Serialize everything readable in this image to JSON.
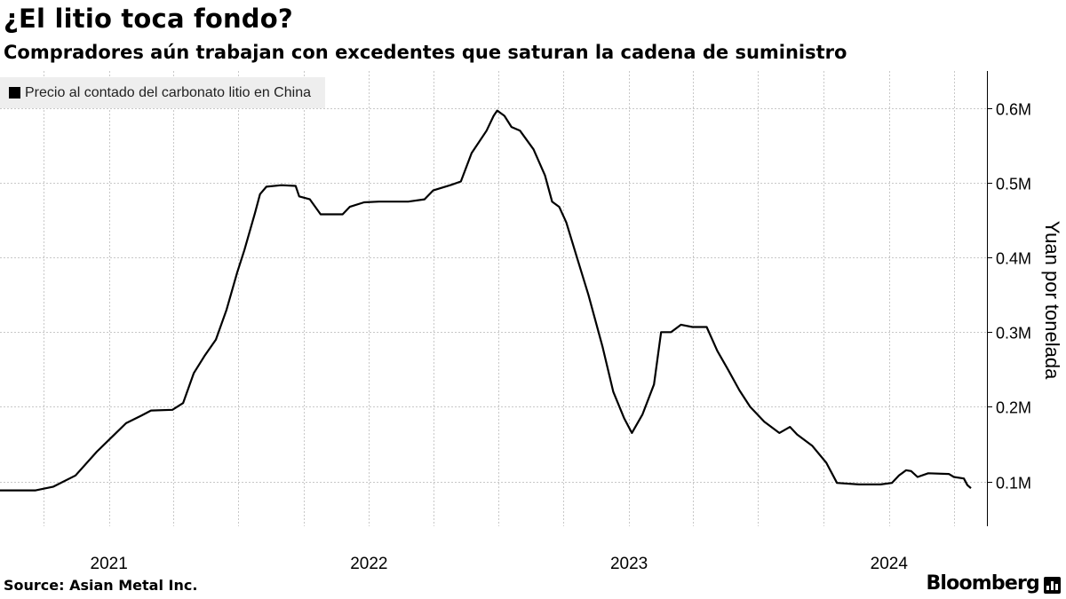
{
  "header": {
    "title": "¿El litio toca fondo?",
    "subtitle": "Compradores aún trabajan con excedentes que saturan la cadena de suministro"
  },
  "legend": {
    "label": "Precio al contado del carbonato litio en China",
    "color": "#000000"
  },
  "footer": {
    "source": "Source: Asian Metal Inc.",
    "brand": "Bloomberg",
    "brand_icon": "bloomberg-bars-icon"
  },
  "chart_data": {
    "type": "line",
    "ylabel": "Yuan por tonelada",
    "ylim": [
      40000,
      650000
    ],
    "yticks": [
      100000,
      200000,
      300000,
      400000,
      500000,
      600000
    ],
    "ytick_labels": [
      "0.1M",
      "0.2M",
      "0.3M",
      "0.4M",
      "0.5M",
      "0.6M"
    ],
    "xlim": [
      "2020-08-01",
      "2024-04-25"
    ],
    "x_tick_labels": [
      {
        "label": "2021",
        "date": "2021-01-01"
      },
      {
        "label": "2022",
        "date": "2022-01-01"
      },
      {
        "label": "2023",
        "date": "2023-01-01"
      },
      {
        "label": "2024",
        "date": "2024-01-01"
      }
    ],
    "grid": true,
    "legend_position": "top-left",
    "axis_side": "right",
    "series": [
      {
        "name": "Precio al contado del carbonato litio en China",
        "color": "#000000",
        "points": [
          [
            "2020-08-01",
            88000
          ],
          [
            "2020-09-20",
            88000
          ],
          [
            "2020-10-15",
            93000
          ],
          [
            "2020-11-15",
            108000
          ],
          [
            "2020-12-15",
            140000
          ],
          [
            "2021-01-25",
            178000
          ],
          [
            "2021-02-15",
            188000
          ],
          [
            "2021-03-01",
            195000
          ],
          [
            "2021-03-31",
            196000
          ],
          [
            "2021-04-15",
            205000
          ],
          [
            "2021-04-30",
            245000
          ],
          [
            "2021-05-15",
            268000
          ],
          [
            "2021-05-31",
            290000
          ],
          [
            "2021-06-15",
            330000
          ],
          [
            "2021-06-30",
            380000
          ],
          [
            "2021-07-10",
            410000
          ],
          [
            "2021-07-25",
            460000
          ],
          [
            "2021-08-01",
            485000
          ],
          [
            "2021-08-10",
            495000
          ],
          [
            "2021-08-31",
            497000
          ],
          [
            "2021-09-20",
            496000
          ],
          [
            "2021-09-25",
            482000
          ],
          [
            "2021-10-10",
            478000
          ],
          [
            "2021-10-25",
            458000
          ],
          [
            "2021-11-25",
            458000
          ],
          [
            "2021-12-05",
            468000
          ],
          [
            "2021-12-25",
            474000
          ],
          [
            "2022-01-15",
            475000
          ],
          [
            "2022-02-25",
            475000
          ],
          [
            "2022-03-20",
            478000
          ],
          [
            "2022-04-01",
            490000
          ],
          [
            "2022-04-25",
            497000
          ],
          [
            "2022-05-10",
            502000
          ],
          [
            "2022-05-25",
            540000
          ],
          [
            "2022-06-15",
            570000
          ],
          [
            "2022-06-25",
            590000
          ],
          [
            "2022-06-30",
            597000
          ],
          [
            "2022-07-10",
            590000
          ],
          [
            "2022-07-20",
            575000
          ],
          [
            "2022-08-01",
            570000
          ],
          [
            "2022-08-20",
            545000
          ],
          [
            "2022-09-05",
            510000
          ],
          [
            "2022-09-15",
            475000
          ],
          [
            "2022-09-25",
            468000
          ],
          [
            "2022-10-05",
            447000
          ],
          [
            "2022-10-20",
            400000
          ],
          [
            "2022-11-05",
            350000
          ],
          [
            "2022-11-25",
            280000
          ],
          [
            "2022-12-10",
            220000
          ],
          [
            "2022-12-25",
            185000
          ],
          [
            "2023-01-05",
            165000
          ],
          [
            "2023-01-20",
            190000
          ],
          [
            "2023-02-05",
            230000
          ],
          [
            "2023-02-15",
            300000
          ],
          [
            "2023-03-01",
            300000
          ],
          [
            "2023-03-15",
            310000
          ],
          [
            "2023-03-31",
            307000
          ],
          [
            "2023-04-20",
            307000
          ],
          [
            "2023-05-05",
            275000
          ],
          [
            "2023-05-20",
            250000
          ],
          [
            "2023-06-05",
            222000
          ],
          [
            "2023-06-20",
            200000
          ],
          [
            "2023-07-10",
            180000
          ],
          [
            "2023-07-31",
            165000
          ],
          [
            "2023-08-15",
            173000
          ],
          [
            "2023-08-25",
            163000
          ],
          [
            "2023-09-15",
            148000
          ],
          [
            "2023-10-05",
            125000
          ],
          [
            "2023-10-20",
            98000
          ],
          [
            "2023-11-20",
            96000
          ],
          [
            "2023-12-20",
            96000
          ],
          [
            "2024-01-05",
            98000
          ],
          [
            "2024-01-15",
            108000
          ],
          [
            "2024-01-25",
            115000
          ],
          [
            "2024-02-01",
            114000
          ],
          [
            "2024-02-10",
            106000
          ],
          [
            "2024-02-25",
            111000
          ],
          [
            "2024-03-25",
            110000
          ],
          [
            "2024-04-01",
            106000
          ],
          [
            "2024-04-15",
            104000
          ],
          [
            "2024-04-20",
            95000
          ],
          [
            "2024-04-25",
            91000
          ]
        ]
      }
    ]
  }
}
